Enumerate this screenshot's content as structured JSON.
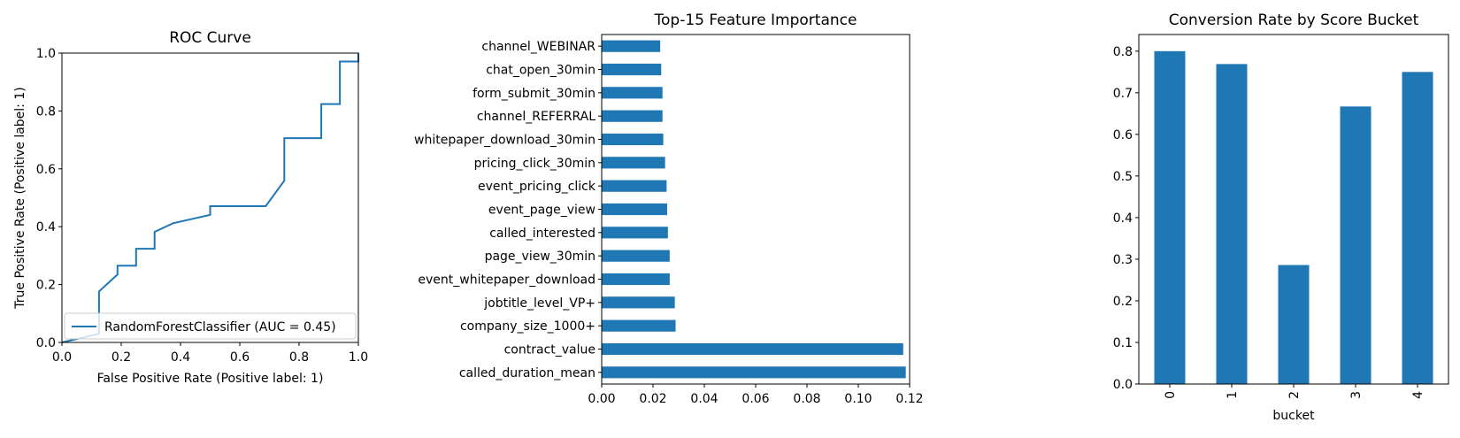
{
  "colors": {
    "series": "#1f77b4",
    "axis": "#000000",
    "legend_border": "#cccccc"
  },
  "chart_data": [
    {
      "type": "line",
      "title": "ROC Curve",
      "xlabel": "False Positive Rate (Positive label: 1)",
      "ylabel": "True Positive Rate (Positive label: 1)",
      "xlim": [
        0.0,
        1.0
      ],
      "ylim": [
        0.0,
        1.0
      ],
      "xticks": [
        "0.0",
        "0.2",
        "0.4",
        "0.6",
        "0.8",
        "1.0"
      ],
      "yticks": [
        "0.0",
        "0.2",
        "0.4",
        "0.6",
        "0.8",
        "1.0"
      ],
      "grid": false,
      "legend_position": "lower-right",
      "series": [
        {
          "name": "RandomForestClassifier (AUC = 0.45)",
          "x": [
            0.0,
            0.125,
            0.125,
            0.1875,
            0.1875,
            0.25,
            0.25,
            0.3125,
            0.3125,
            0.375,
            0.5,
            0.5,
            0.6875,
            0.75,
            0.75,
            0.875,
            0.875,
            0.9375,
            0.9375,
            1.0,
            1.0
          ],
          "y": [
            0.0,
            0.03,
            0.176,
            0.235,
            0.265,
            0.265,
            0.324,
            0.324,
            0.382,
            0.412,
            0.441,
            0.471,
            0.471,
            0.559,
            0.706,
            0.706,
            0.824,
            0.824,
            0.971,
            0.971,
            1.0
          ]
        }
      ]
    },
    {
      "type": "bar",
      "orientation": "horizontal",
      "title": "Top-15 Feature Importance",
      "xlabel": "",
      "ylabel": "",
      "xlim": [
        0.0,
        0.12
      ],
      "xticks": [
        "0.00",
        "0.02",
        "0.04",
        "0.06",
        "0.08",
        "0.10",
        "0.12"
      ],
      "categories": [
        "called_duration_mean",
        "contract_value",
        "company_size_1000+",
        "jobtitle_level_VP+",
        "event_whitepaper_download",
        "page_view_30min",
        "called_interested",
        "event_page_view",
        "event_pricing_click",
        "pricing_click_30min",
        "whitepaper_download_30min",
        "channel_REFERRAL",
        "form_submit_30min",
        "chat_open_30min",
        "channel_WEBINAR"
      ],
      "values": [
        0.1185,
        0.1175,
        0.0288,
        0.0285,
        0.0265,
        0.0265,
        0.0258,
        0.0255,
        0.0253,
        0.0247,
        0.024,
        0.0237,
        0.0237,
        0.0232,
        0.0228
      ],
      "grid": false
    },
    {
      "type": "bar",
      "title": "Conversion Rate by Score Bucket",
      "xlabel": "bucket",
      "ylabel": "",
      "ylim": [
        0.0,
        0.84
      ],
      "yticks": [
        "0.0",
        "0.1",
        "0.2",
        "0.3",
        "0.4",
        "0.5",
        "0.6",
        "0.7",
        "0.8"
      ],
      "categories": [
        "0",
        "1",
        "2",
        "3",
        "4"
      ],
      "values": [
        0.8,
        0.769,
        0.286,
        0.667,
        0.75
      ],
      "grid": false
    }
  ]
}
